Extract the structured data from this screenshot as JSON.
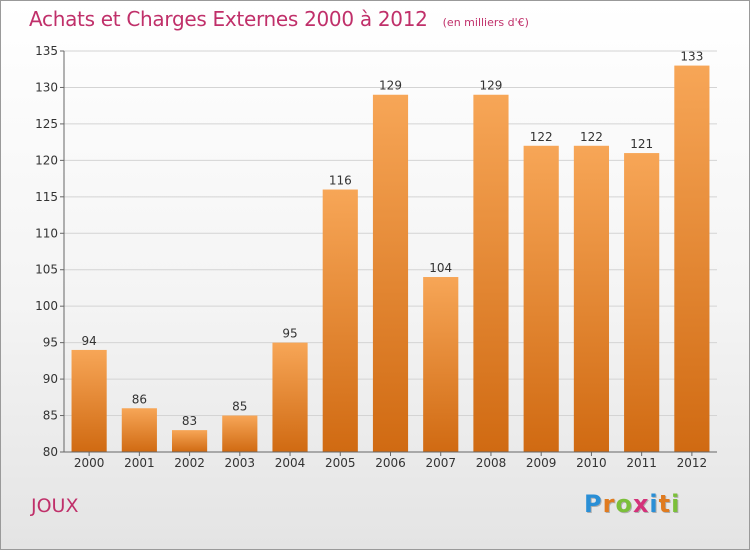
{
  "header": {
    "title": "Achats et Charges Externes 2000 à 2012",
    "unit": "(en milliers d'€)"
  },
  "footer": {
    "commune": "JOUX",
    "logo": [
      "P",
      "r",
      "o",
      "x",
      "i",
      "t",
      "i"
    ],
    "logo_colors": [
      "#2a8fd6",
      "#e07b1f",
      "#7bbf3a",
      "#d4327a",
      "#2a8fd6",
      "#e07b1f",
      "#7bbf3a"
    ]
  },
  "colors": {
    "bar_top": "#f7a657",
    "bar_bottom": "#d06a12",
    "accent": "#c0306a"
  },
  "chart_data": {
    "type": "bar",
    "title": "Achats et Charges Externes 2000 à 2012",
    "categories": [
      "2000",
      "2001",
      "2002",
      "2003",
      "2004",
      "2005",
      "2006",
      "2007",
      "2008",
      "2009",
      "2010",
      "2011",
      "2012"
    ],
    "values": [
      94,
      86,
      83,
      85,
      95,
      116,
      129,
      104,
      129,
      122,
      122,
      121,
      133
    ],
    "ylim": [
      80,
      135
    ],
    "yticks": [
      80,
      85,
      90,
      95,
      100,
      105,
      110,
      115,
      120,
      125,
      130,
      135
    ],
    "grid": true
  }
}
